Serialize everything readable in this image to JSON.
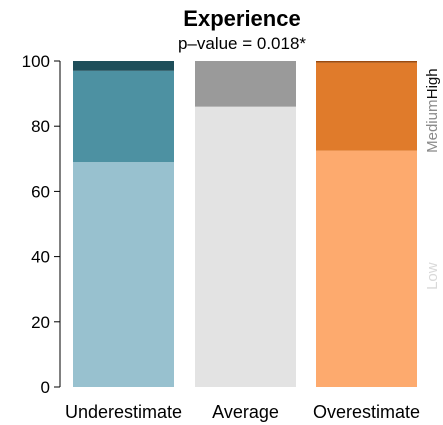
{
  "chart_data": {
    "type": "bar",
    "title": "Experience",
    "subtitle": "p–value =  0.018*",
    "categories": [
      "Underestimate",
      "Average",
      "Overestimate"
    ],
    "stack_levels": [
      "Low",
      "Medium",
      "High"
    ],
    "ylim": [
      0,
      100
    ],
    "yticks": [
      "0",
      "20",
      "40",
      "60",
      "80",
      "100"
    ],
    "ytick_values": [
      0,
      20,
      40,
      60,
      80,
      100
    ],
    "bars": [
      {
        "category": "Underestimate",
        "segments": [
          {
            "level": "Low",
            "value": 69,
            "color": "#98c1cf"
          },
          {
            "level": "Medium",
            "value": 28,
            "color": "#4d91a2"
          },
          {
            "level": "High",
            "value": 3,
            "color": "#1e4e5a"
          }
        ]
      },
      {
        "category": "Average",
        "segments": [
          {
            "level": "Low",
            "value": 86,
            "color": "#e3e3e3"
          },
          {
            "level": "Medium",
            "value": 14,
            "color": "#9a9a9a"
          },
          {
            "level": "High",
            "value": 0,
            "color": "#555555"
          }
        ]
      },
      {
        "category": "Overestimate",
        "segments": [
          {
            "level": "Low",
            "value": 72.5,
            "color": "#fdaa6e"
          },
          {
            "level": "Medium",
            "value": 27,
            "color": "#e07b2b"
          },
          {
            "level": "High",
            "value": 0.5,
            "color": "#9a4a0f"
          }
        ]
      }
    ],
    "side_labels": [
      {
        "level": "Low",
        "text": "Low",
        "color": "#d9d9d9"
      },
      {
        "level": "Medium",
        "text": "Medium",
        "color": "#8a8a8a"
      },
      {
        "level": "High",
        "text": "High",
        "color": "#111111"
      }
    ],
    "grid": false,
    "legend": "right-side vertical labels"
  }
}
